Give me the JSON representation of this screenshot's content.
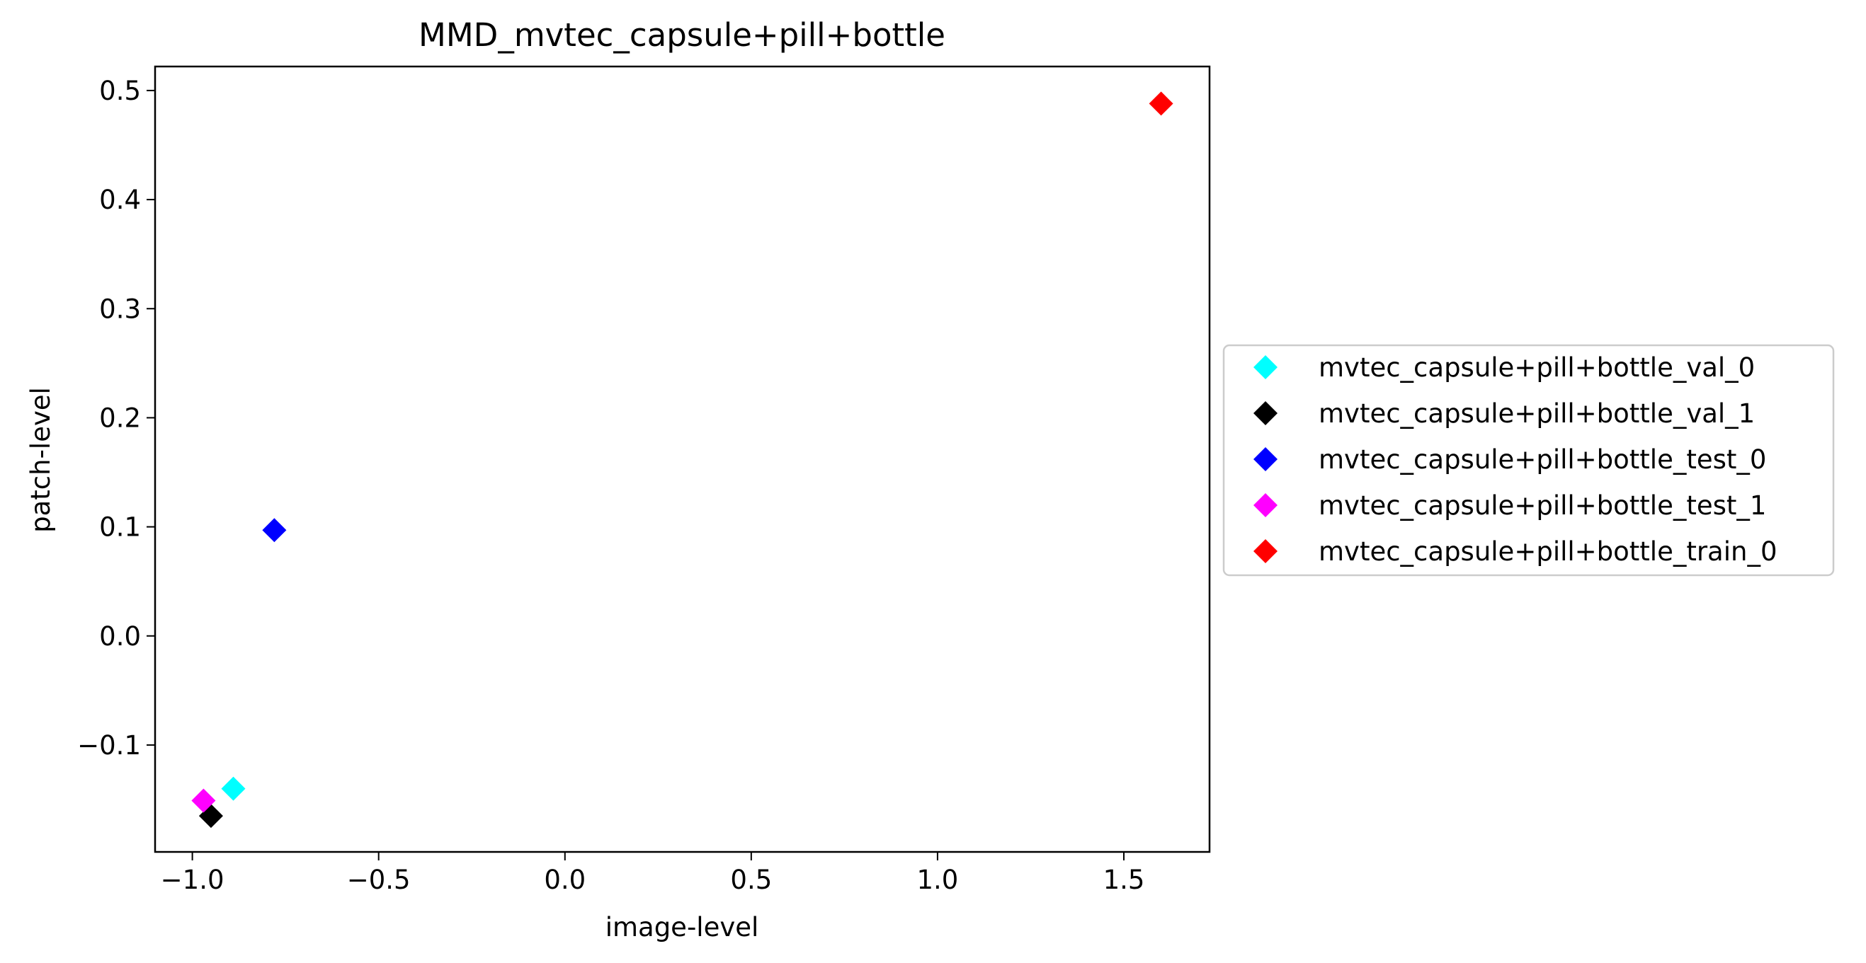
{
  "chart_data": {
    "type": "scatter",
    "title": "MMD_mvtec_capsule+pill+bottle",
    "xlabel": "image-level",
    "ylabel": "patch-level",
    "xlim": [
      -1.1,
      1.73
    ],
    "ylim": [
      -0.198,
      0.522
    ],
    "xticks": [
      -1.0,
      -0.5,
      0.0,
      0.5,
      1.0,
      1.5
    ],
    "xtick_labels": [
      "−1.0",
      "−0.5",
      "0.0",
      "0.5",
      "1.0",
      "1.5"
    ],
    "yticks": [
      -0.1,
      0.0,
      0.1,
      0.2,
      0.3,
      0.4,
      0.5
    ],
    "ytick_labels": [
      "−0.1",
      "0.0",
      "0.1",
      "0.2",
      "0.3",
      "0.4",
      "0.5"
    ],
    "grid": false,
    "legend_position": "outside right",
    "marker": "diamond",
    "series": [
      {
        "name": "mvtec_capsule+pill+bottle_val_0",
        "color": "#00ffff",
        "points": [
          {
            "x": -0.89,
            "y": -0.14
          }
        ]
      },
      {
        "name": "mvtec_capsule+pill+bottle_val_1",
        "color": "#000000",
        "points": [
          {
            "x": -0.95,
            "y": -0.165
          }
        ]
      },
      {
        "name": "mvtec_capsule+pill+bottle_test_0",
        "color": "#0000ff",
        "points": [
          {
            "x": -0.78,
            "y": 0.097
          }
        ]
      },
      {
        "name": "mvtec_capsule+pill+bottle_test_1",
        "color": "#ff00ff",
        "points": [
          {
            "x": -0.97,
            "y": -0.151
          }
        ]
      },
      {
        "name": "mvtec_capsule+pill+bottle_train_0",
        "color": "#ff0000",
        "points": [
          {
            "x": 1.6,
            "y": 0.488
          }
        ]
      }
    ]
  }
}
